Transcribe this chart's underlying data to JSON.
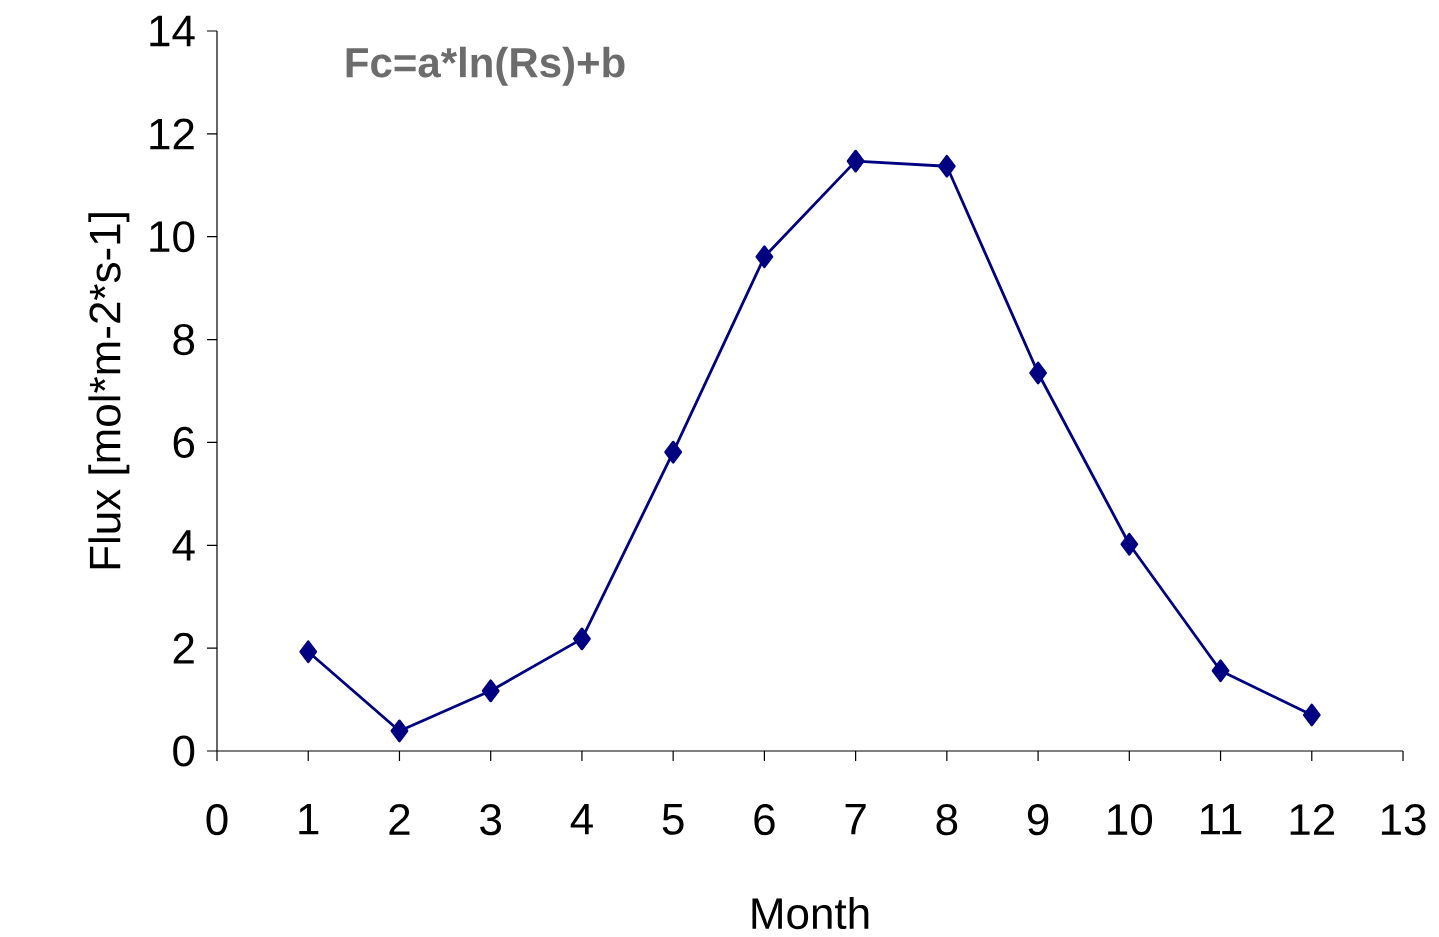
{
  "chart_data": {
    "type": "line",
    "xlabel": "Month",
    "ylabel": "Flux [mol*m-2*s-1]",
    "annotations": [
      "Fc=a*ln(Rs)+b"
    ],
    "x": [
      1,
      2,
      3,
      4,
      5,
      6,
      7,
      8,
      9,
      10,
      11,
      12
    ],
    "values": [
      1.93,
      0.39,
      1.17,
      2.18,
      5.81,
      9.61,
      11.47,
      11.37,
      7.35,
      4.02,
      1.56,
      0.7
    ],
    "color": "#000080",
    "marker": "diamond",
    "line_style": "solid",
    "xlim": [
      0,
      13
    ],
    "ylim": [
      0,
      14
    ],
    "xticks": [
      0,
      1,
      2,
      3,
      4,
      5,
      6,
      7,
      8,
      9,
      10,
      11,
      12,
      13
    ],
    "yticks": [
      0,
      2,
      4,
      6,
      8,
      10,
      12,
      14
    ]
  }
}
